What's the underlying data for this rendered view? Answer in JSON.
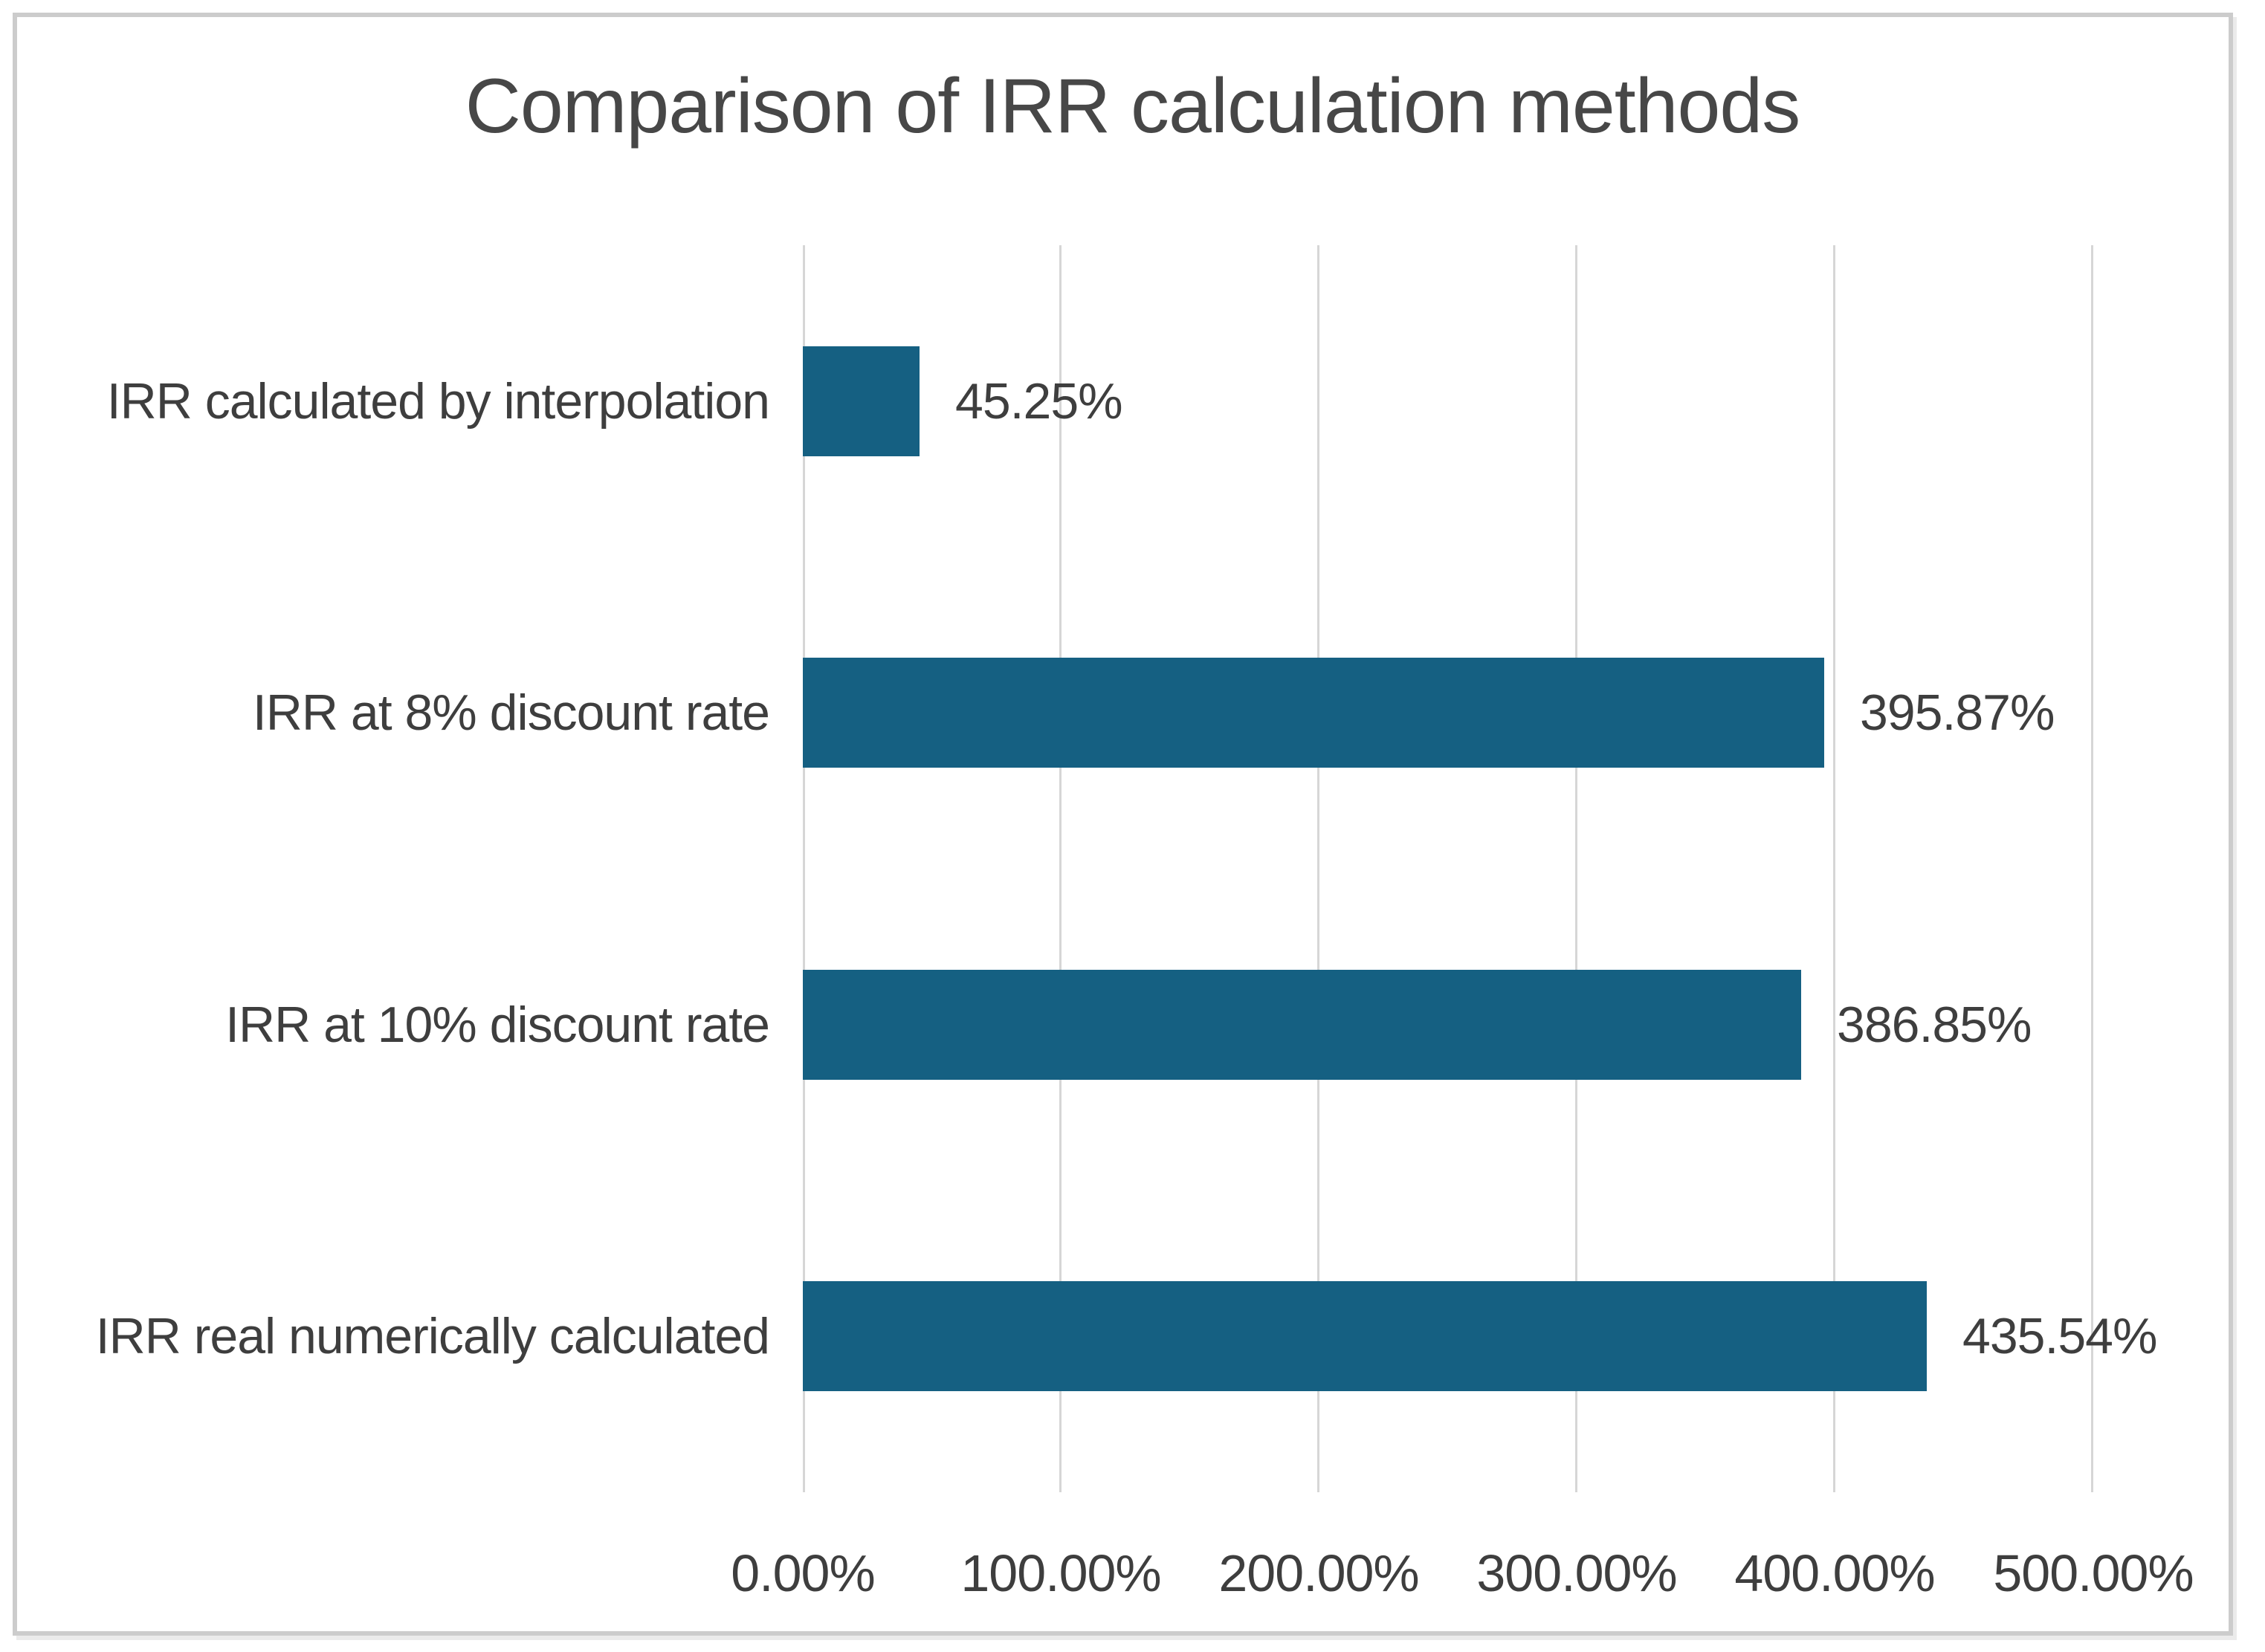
{
  "chart_data": {
    "type": "bar",
    "orientation": "horizontal",
    "title": "Comparison of IRR calculation methods",
    "categories": [
      "IRR calculated by interpolation",
      "IRR at 8% discount rate",
      "IRR at 10% discount rate",
      "IRR real numerically calculated"
    ],
    "values": [
      45.25,
      395.87,
      386.85,
      435.54
    ],
    "data_labels": [
      "45.25%",
      "395.87%",
      "386.85%",
      "435.54%"
    ],
    "x_ticks": [
      "0.00%",
      "100.00%",
      "200.00%",
      "300.00%",
      "400.00%",
      "500.00%"
    ],
    "xlabel": "",
    "ylabel": "",
    "xlim": [
      0,
      500
    ],
    "grid": true,
    "legend": false,
    "colors": {
      "bar_fill": "#156082",
      "gridline": "#d6d6d6",
      "title_text": "#474747",
      "label_text": "#3e3e3e",
      "frame_border": "#cccccc"
    }
  }
}
